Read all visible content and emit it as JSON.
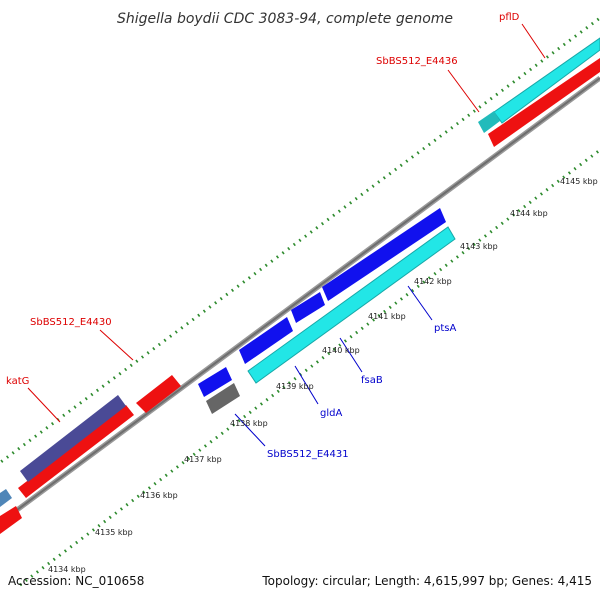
{
  "title": "Shigella boydii CDC 3083-94, complete genome",
  "footer": {
    "accession": "Accession: NC_010658",
    "summary": "Topology: circular; Length: 4,615,997 bp; Genes: 4,415"
  },
  "colors": {
    "backbone": "#808080",
    "tick": "#2e8b2e",
    "forward_cds": "#ee1111",
    "reverse_cds": "#1111ee",
    "cyan_cds": "#22e6e6",
    "teal_cds": "#22bbbb",
    "purple_cds": "#4a4a96",
    "steel_cds": "#4f86b8",
    "grey_feature": "#666666",
    "red_label": "#dd0000",
    "blue_label": "#0000cc"
  },
  "gene_labels": {
    "pflD": "pflD",
    "SbBS512_E4436": "SbBS512_E4436",
    "SbBS512_E4430": "SbBS512_E4430",
    "katG": "katG",
    "ptsA": "ptsA",
    "fsaB": "fsaB",
    "gldA": "gldA",
    "SbBS512_E4431": "SbBS512_E4431"
  },
  "tick_labels": [
    "4134 kbp",
    "4135 kbp",
    "4136 kbp",
    "4137 kbp",
    "4138 kbp",
    "4139 kbp",
    "4140 kbp",
    "4141 kbp",
    "4142 kbp",
    "4143 kbp",
    "4144 kbp",
    "4145 kbp"
  ]
}
